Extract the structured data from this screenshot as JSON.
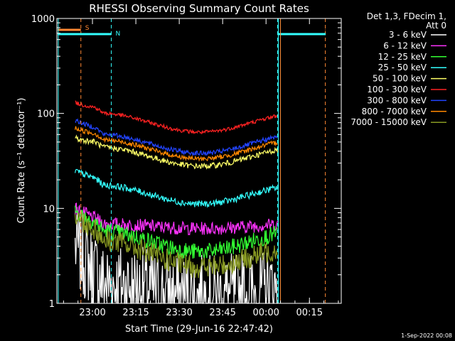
{
  "chart_data": {
    "type": "line",
    "title": "RHESSI Observing Summary Count Rates",
    "xlabel": "Start Time (29-Jun-16 22:47:42)",
    "ylabel": "Count Rate (s⁻¹ detector⁻¹)",
    "yscale": "log",
    "ylim": [
      1,
      1000
    ],
    "xlim": [
      "22:47:42",
      "00:26:00"
    ],
    "x_ticks": [
      "23:00",
      "23:15",
      "23:30",
      "23:45",
      "00:00",
      "00:15"
    ],
    "y_ticks": [
      "1",
      "10",
      "100",
      "1000"
    ],
    "legend_header": [
      "Det 1,3, FDecim 1,",
      "Att 0"
    ],
    "legend_position": "top-right, outside plot",
    "timestamp": "1-Sep-2022 00:08",
    "data_start": "22:54:00",
    "data_end": "00:04:00",
    "series": [
      {
        "name": "3 - 6 keV",
        "color": "#ffffff",
        "start": 4.0,
        "mid": 1.4,
        "end": 1.3,
        "amp": 0.12,
        "noise": 0.45
      },
      {
        "name": "6 - 12 keV",
        "color": "#ff33ff",
        "start": 10.0,
        "mid": 6.5,
        "end": 6.5,
        "amp": 0.05,
        "noise": 0.07
      },
      {
        "name": "12 - 25 keV",
        "color": "#33ff33",
        "start": 9.5,
        "mid": 4.5,
        "end": 4.5,
        "amp": 0.22,
        "noise": 0.09
      },
      {
        "name": "25 - 50 keV",
        "color": "#33ffff",
        "start": 25,
        "mid": 14,
        "end": 14,
        "amp": 0.2,
        "noise": 0.035
      },
      {
        "name": "50 - 100 keV",
        "color": "#ffff66",
        "start": 55,
        "mid": 35,
        "end": 35,
        "amp": 0.2,
        "noise": 0.03
      },
      {
        "name": "100 - 300 keV",
        "color": "#ff2222",
        "start": 130,
        "mid": 80,
        "end": 80,
        "amp": 0.2,
        "noise": 0.02
      },
      {
        "name": "300 - 800 keV",
        "color": "#2244ff",
        "start": 85,
        "mid": 48,
        "end": 48,
        "amp": 0.2,
        "noise": 0.025
      },
      {
        "name": "800 - 7000 keV",
        "color": "#ff8800",
        "start": 70,
        "mid": 42,
        "end": 42,
        "amp": 0.2,
        "noise": 0.025
      },
      {
        "name": "7000 - 15000 keV",
        "color": "#889922",
        "start": 8.5,
        "mid": 3.5,
        "end": 3.0,
        "amp": 0.25,
        "noise": 0.12
      }
    ],
    "markers": [
      {
        "label": "S",
        "color": "#ff8833",
        "times": [
          "22:56:00",
          "00:20:30"
        ]
      },
      {
        "label": "N",
        "color": "#33ffff",
        "times": [
          "23:06:30",
          "00:04:00"
        ]
      }
    ]
  }
}
